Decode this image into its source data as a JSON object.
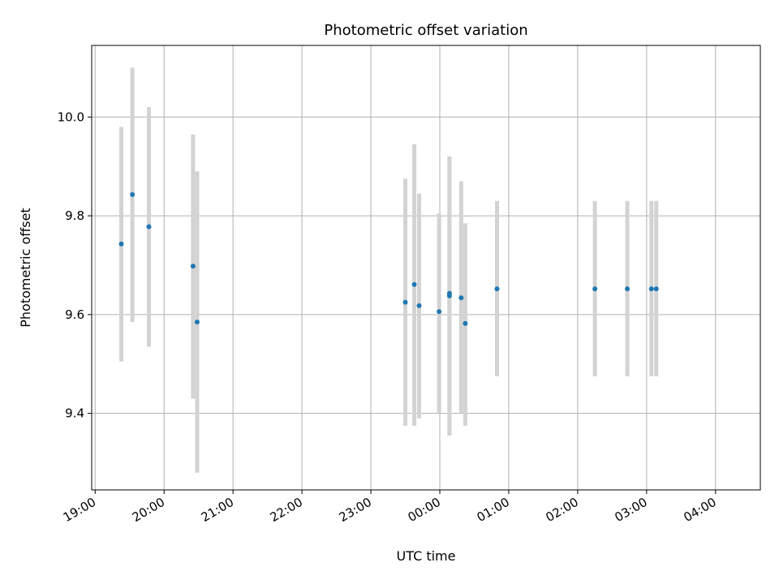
{
  "chart_data": {
    "type": "scatter",
    "title": "Photometric offset variation",
    "xlabel": "UTC time",
    "ylabel": "Photometric offset",
    "x_ticks": [
      "19:00",
      "20:00",
      "21:00",
      "22:00",
      "23:00",
      "00:00",
      "01:00",
      "02:00",
      "03:00",
      "04:00"
    ],
    "y_ticks": [
      "9.4",
      "9.6",
      "9.8",
      "10.0"
    ],
    "x_range": [
      "19:00",
      "04:44"
    ],
    "ylim": [
      9.245,
      10.145
    ],
    "grid": true,
    "errorbar_color": "#d3d3d3",
    "point_color": "#1f77b4",
    "x_values_hours_after_1900": [
      0.38,
      0.54,
      0.78,
      1.42,
      1.48,
      4.5,
      4.63,
      4.7,
      4.99,
      5.14,
      5.14,
      5.31,
      5.37,
      5.83,
      7.25,
      7.72,
      8.07,
      8.14
    ],
    "series": [
      {
        "values": [
          9.743,
          9.843,
          9.778,
          9.698,
          9.585,
          9.625,
          9.661,
          9.618,
          9.606,
          9.643,
          9.638,
          9.634,
          9.582,
          9.652,
          9.652,
          9.652,
          9.652,
          9.652
        ],
        "errors": [
          [
            9.505,
            9.98
          ],
          [
            9.585,
            10.1
          ],
          [
            9.535,
            10.02
          ],
          [
            9.43,
            9.965
          ],
          [
            9.28,
            9.89
          ],
          [
            9.375,
            9.875
          ],
          [
            9.375,
            9.945
          ],
          [
            9.39,
            9.845
          ],
          [
            9.4,
            9.805
          ],
          [
            9.355,
            9.92
          ],
          [
            9.355,
            9.92
          ],
          [
            9.4,
            9.87
          ],
          [
            9.375,
            9.785
          ],
          [
            9.475,
            9.83
          ],
          [
            9.475,
            9.83
          ],
          [
            9.475,
            9.83
          ],
          [
            9.475,
            9.83
          ],
          [
            9.475,
            9.83
          ]
        ]
      }
    ]
  }
}
